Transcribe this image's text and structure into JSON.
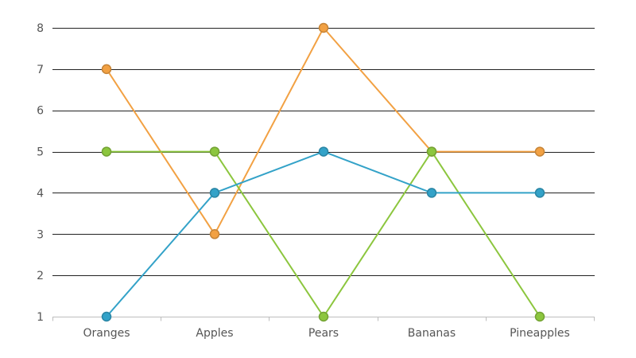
{
  "chart_data": {
    "type": "line",
    "categories": [
      "Oranges",
      "Apples",
      "Pears",
      "Bananas",
      "Pineapples"
    ],
    "series": [
      {
        "color": "#f2a143",
        "values": [
          7,
          3,
          8,
          5,
          5
        ]
      },
      {
        "color": "#8cc63e",
        "values": [
          5,
          5,
          1,
          5,
          1
        ]
      },
      {
        "color": "#33a2c8",
        "values": [
          1,
          4,
          5,
          4,
          4
        ]
      }
    ],
    "yticks": [
      "1",
      "2",
      "3",
      "4",
      "5",
      "6",
      "7",
      "8"
    ],
    "ylim": [
      1,
      8
    ],
    "grid": true,
    "legend": "none"
  }
}
